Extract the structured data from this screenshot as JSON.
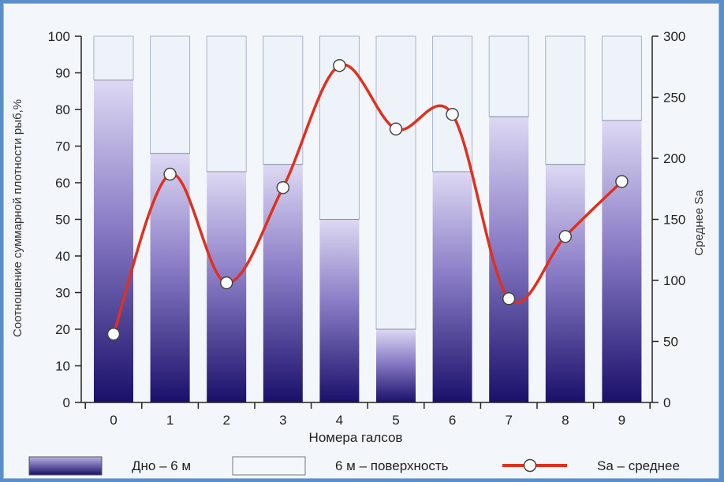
{
  "chart_data": {
    "type": "bar",
    "xlabel": "Номера галсов",
    "ylabel_left": "Соотношение суммарной плотности рыб,%",
    "ylabel_right": "Среднее Sa",
    "categories": [
      "0",
      "1",
      "2",
      "3",
      "4",
      "5",
      "6",
      "7",
      "8",
      "9"
    ],
    "ylim_left": [
      0,
      100
    ],
    "ylim_right": [
      0,
      300
    ],
    "yticks_left": [
      "0",
      "10",
      "20",
      "30",
      "40",
      "50",
      "60",
      "70",
      "80",
      "90",
      "100"
    ],
    "yticks_right": [
      "0",
      "50",
      "100",
      "150",
      "200",
      "250",
      "300"
    ],
    "stacked": true,
    "series": [
      {
        "name": "Дно – 6 м",
        "kind": "bar",
        "values": [
          88,
          68,
          63,
          65,
          50,
          20,
          63,
          78,
          65,
          77
        ]
      },
      {
        "name": "6 м – поверхность",
        "kind": "bar",
        "values": [
          12,
          32,
          37,
          35,
          50,
          80,
          37,
          22,
          35,
          23
        ]
      },
      {
        "name": "Sa – среднее",
        "kind": "line",
        "axis": "right",
        "values": [
          56,
          187,
          98,
          176,
          276,
          224,
          236,
          85,
          136,
          181
        ]
      }
    ],
    "colors": {
      "bottom_dark": "#1f1470",
      "bottom_light": "#ddd9f3",
      "top_fill": "#eef3fa",
      "line": "#e0301e",
      "marker_fill": "#ffffff"
    },
    "legend_position": "bottom",
    "grid": false
  }
}
